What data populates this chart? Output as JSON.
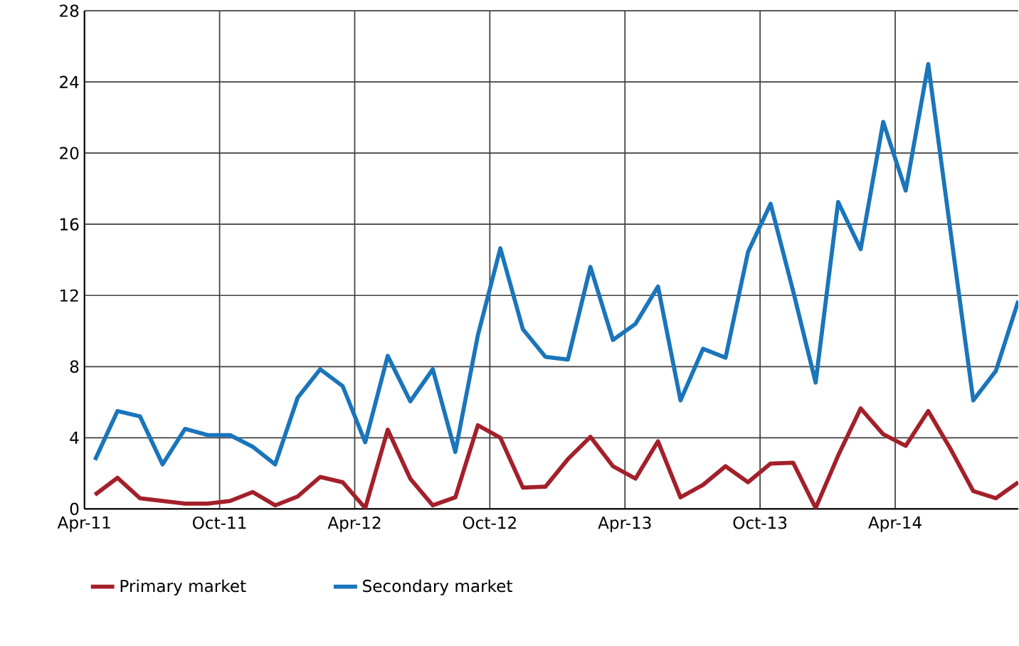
{
  "chart_data": {
    "type": "line",
    "x": [
      "2011-04-15",
      "2011-05-15",
      "2011-06-15",
      "2011-07-15",
      "2011-08-15",
      "2011-09-15",
      "2011-10-15",
      "2011-11-15",
      "2011-12-15",
      "2012-01-15",
      "2012-02-15",
      "2012-03-15",
      "2012-04-15",
      "2012-05-15",
      "2012-06-15",
      "2012-07-15",
      "2012-08-15",
      "2012-09-15",
      "2012-10-15",
      "2012-11-15",
      "2012-12-15",
      "2013-01-15",
      "2013-02-15",
      "2013-03-15",
      "2013-04-15",
      "2013-05-15",
      "2013-06-15",
      "2013-07-15",
      "2013-08-15",
      "2013-09-15",
      "2013-10-15",
      "2013-11-15",
      "2013-12-15",
      "2014-01-15",
      "2014-02-15",
      "2014-03-15",
      "2014-04-15",
      "2014-05-15",
      "2014-06-15",
      "2014-07-15",
      "2014-08-15",
      "2014-09-15"
    ],
    "series": [
      {
        "name": "Primary market",
        "color": "#a3202a",
        "values": [
          0.8,
          1.75,
          0.6,
          0.45,
          0.3,
          0.3,
          0.45,
          0.95,
          0.2,
          0.7,
          1.8,
          1.5,
          0.05,
          4.45,
          1.7,
          0.2,
          0.65,
          4.7,
          4.0,
          1.2,
          1.25,
          2.8,
          4.05,
          2.4,
          1.7,
          3.8,
          0.65,
          1.35,
          2.4,
          1.5,
          2.55,
          2.6,
          0.05,
          3.0,
          5.65,
          4.2,
          3.55,
          5.5,
          3.35,
          1.0,
          0.6,
          1.5
        ]
      },
      {
        "name": "Secondary market",
        "color": "#1a75bb",
        "values": [
          2.75,
          5.5,
          5.2,
          2.5,
          4.5,
          4.15,
          4.15,
          3.5,
          2.5,
          6.25,
          7.85,
          6.9,
          3.75,
          8.6,
          6.05,
          7.85,
          3.2,
          9.75,
          14.65,
          10.1,
          8.55,
          8.4,
          13.6,
          9.5,
          10.4,
          12.5,
          6.1,
          9.0,
          8.5,
          14.45,
          17.15,
          12.25,
          7.1,
          17.25,
          14.6,
          21.75,
          17.9,
          25.0,
          15.5,
          6.1,
          7.75,
          11.7
        ]
      }
    ],
    "xlim": [
      "2011-04",
      "2014-09-15"
    ],
    "xticks": [
      {
        "value": "2011-04",
        "label": "Apr-11"
      },
      {
        "value": "2011-10",
        "label": "Oct-11"
      },
      {
        "value": "2012-04",
        "label": "Apr-12"
      },
      {
        "value": "2012-10",
        "label": "Oct-12"
      },
      {
        "value": "2013-04",
        "label": "Apr-13"
      },
      {
        "value": "2013-10",
        "label": "Oct-13"
      },
      {
        "value": "2014-04",
        "label": "Apr-14"
      }
    ],
    "ylim": [
      0,
      28
    ],
    "yticks": [
      0,
      4,
      8,
      12,
      16,
      20,
      24,
      28
    ],
    "grid": true,
    "legend": "bottom",
    "marker": "none",
    "line_style": "solid"
  }
}
